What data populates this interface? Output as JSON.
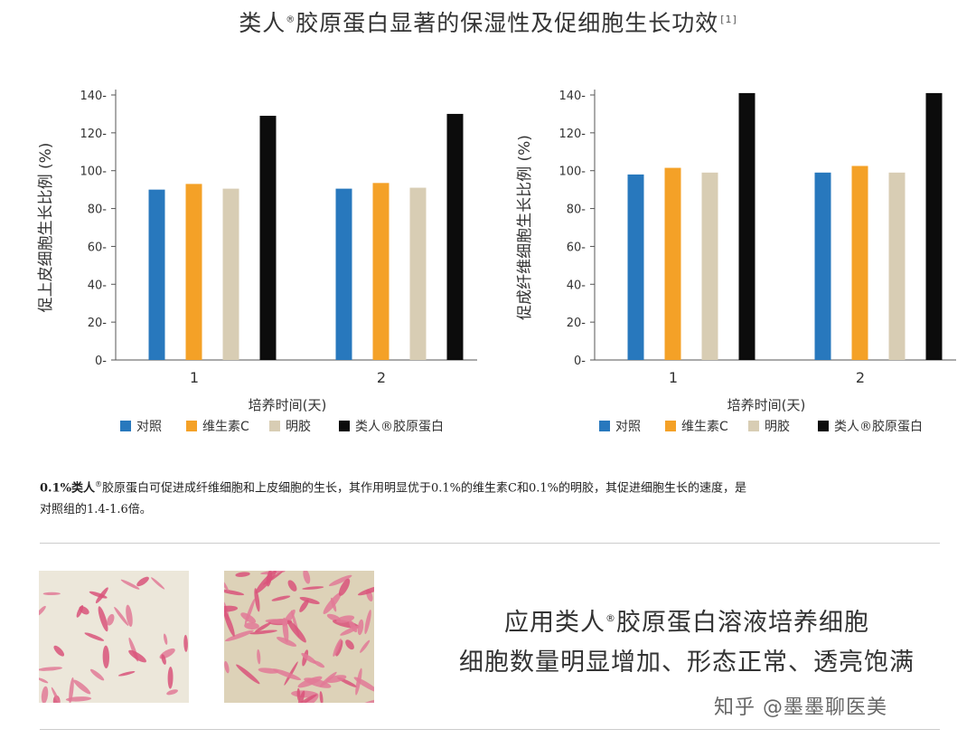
{
  "title": {
    "prefix": "类人",
    "registered": "®",
    "suffix": "胶原蛋白显著的保湿性及促细胞生长功效",
    "ref": "[1]"
  },
  "colors": {
    "对照": "#2878bd",
    "维生素C": "#f4a127",
    "明胶": "#d8cdb4",
    "类人胶原蛋白": "#0c0c0c",
    "axis": "#555555"
  },
  "chart_data": [
    {
      "type": "bar",
      "ylabel": "促上皮细胞生长比例 (%)",
      "xlabel": "培养时间(天)",
      "categories": [
        "1",
        "2"
      ],
      "ylim": [
        0,
        140
      ],
      "yticks": [
        0,
        20,
        40,
        60,
        80,
        100,
        120,
        140
      ],
      "series": [
        {
          "name": "对照",
          "values": [
            90,
            90.5
          ]
        },
        {
          "name": "维生素C",
          "values": [
            93,
            93.5
          ]
        },
        {
          "name": "明胶",
          "values": [
            90.5,
            91
          ]
        },
        {
          "name": "类人®胶原蛋白",
          "values": [
            129,
            130
          ]
        }
      ],
      "legend": "bottom",
      "grid": false
    },
    {
      "type": "bar",
      "ylabel": "促成纤维细胞生长比例 (%)",
      "xlabel": "培养时间(天)",
      "categories": [
        "1",
        "2"
      ],
      "ylim": [
        0,
        140
      ],
      "yticks": [
        0,
        20,
        40,
        60,
        80,
        100,
        120,
        140
      ],
      "series": [
        {
          "name": "对照",
          "values": [
            98,
            99
          ]
        },
        {
          "name": "维生素C",
          "values": [
            101.5,
            102.5
          ]
        },
        {
          "name": "明胶",
          "values": [
            99,
            99
          ]
        },
        {
          "name": "类人®胶原蛋白",
          "values": [
            141,
            141
          ]
        }
      ],
      "legend": "bottom",
      "grid": false
    }
  ],
  "caption": {
    "line1_a": "0.1%类人",
    "line1_reg": "®",
    "line1_b": "胶原蛋白可促进成纤维细胞和上皮细胞的生长，其作用明显优于0.1%的维生素C和0.1%的明胶，其促进细胞生长的速度，是",
    "line2": "对照组的1.4-1.6倍。"
  },
  "result": {
    "line1_a": "应用类人",
    "line1_reg": "®",
    "line1_b": "胶原蛋白溶液培养细胞",
    "line2": "细胞数量明显增加、形态正常、透亮饱满"
  },
  "watermark": "知乎 @墨墨聊医美"
}
